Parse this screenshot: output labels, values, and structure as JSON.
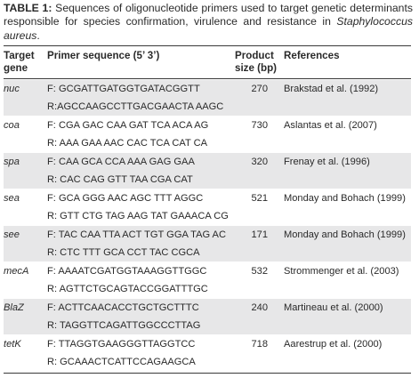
{
  "caption": {
    "label": "TABLE 1:",
    "text_before": " Sequences of oligonucleotide primers used to target genetic determinants responsible for species confirmation, virulence and resistance in ",
    "species": "Staphylococcus aureus",
    "text_after": "."
  },
  "columns": {
    "gene": [
      "Target",
      "gene"
    ],
    "primer": "Primer sequence (5’ 3’)",
    "size": [
      "Product",
      "size (bp)"
    ],
    "refs": "References"
  },
  "rows": [
    {
      "gene": "nuc",
      "forward": "F: GCGATTGATGGTGATACGGTT",
      "reverse": "R:AGCCAAGCCTTGACGAACTA AAGC",
      "size": "270",
      "reference": "Brakstad et al. (1992)"
    },
    {
      "gene": "coa",
      "forward": "F: CGA GAC CAA GAT TCA ACA AG",
      "reverse": "R: AAA GAA AAC CAC TCA CAT CA",
      "size": "730",
      "reference": "Aslantas et al. (2007)"
    },
    {
      "gene": "spa",
      "forward": "F: CAA GCA CCA AAA GAG GAA",
      "reverse": "R: CAC CAG GTT TAA CGA CAT",
      "size": "320",
      "reference": "Frenay et al. (1996)"
    },
    {
      "gene": "sea",
      "forward": "F: GCA GGG AAC AGC TTT AGGC",
      "reverse": "R: GTT CTG TAG AAG TAT GAAACA CG",
      "size": "521",
      "reference": "Monday and Bohach (1999)"
    },
    {
      "gene": "see",
      "forward": "F: TAC CAA TTA ACT TGT GGA TAG AC",
      "reverse": "R: CTC TTT GCA CCT TAC CGCA",
      "size": "171",
      "reference": "Monday and Bohach (1999)"
    },
    {
      "gene": "mecA",
      "forward": "F: AAAATCGATGGTAAAGGTTGGC",
      "reverse": "R: AGTTCTGCAGTACCGGATTTGC",
      "size": "532",
      "reference": "Strommenger et al. (2003)"
    },
    {
      "gene": "BlaZ",
      "forward": "F: ACTTCAACACCTGCTGCTTTC",
      "reverse": "R: TAGGTTCAGATTGGCCCTTAG",
      "size": "240",
      "reference": "Martineau et al. (2000)"
    },
    {
      "gene": "tetK",
      "forward": "F: TTAGGTGAAGGGTTAGGTCC",
      "reverse": "R: GCAAACTCATTCCAGAAGCA",
      "size": "718",
      "reference": "Aarestrup et al. (2000)"
    }
  ]
}
